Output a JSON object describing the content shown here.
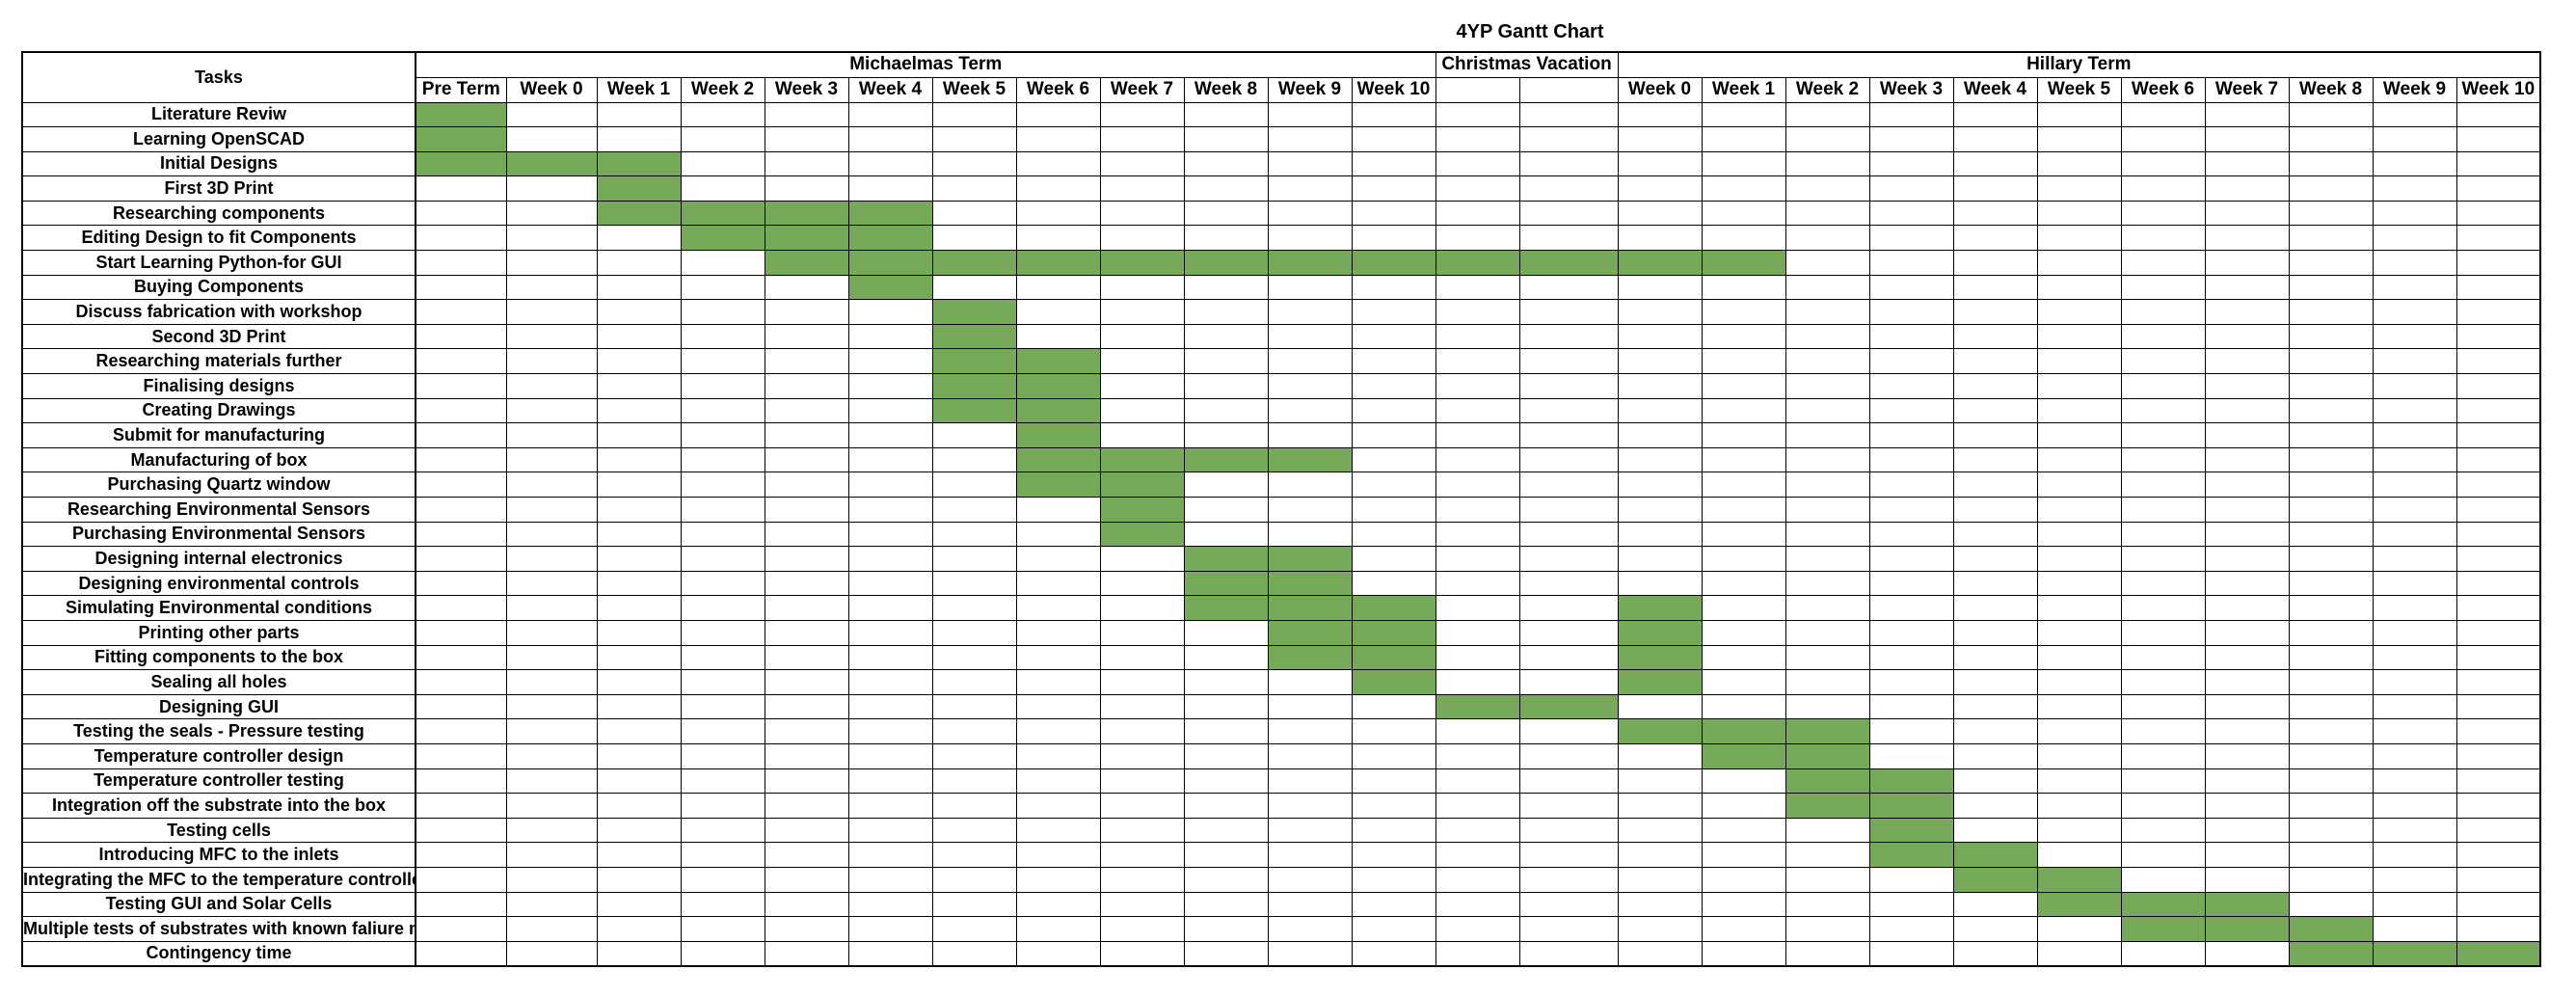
{
  "title": "4YP Gantt Chart",
  "header": {
    "tasks_label": "Tasks",
    "groups": [
      {
        "label": "",
        "span": 0
      },
      {
        "label": "Michaelmas Term",
        "span": 12
      },
      {
        "label": "Christmas Vacation",
        "span": 2
      },
      {
        "label": "Hillary Term",
        "span": 11
      }
    ]
  },
  "colors": {
    "filled": "#77a95a",
    "grid": "#000000",
    "background": "#ffffff"
  },
  "chart_data": {
    "type": "table",
    "title": "4YP Gantt Chart",
    "periods": [
      "Pre Term",
      "Week  0",
      "Week 1",
      "Week 2",
      "Week 3",
      "Week 4",
      "Week 5",
      "Week 6",
      "Week 7",
      "Week 8",
      "Week 9",
      "Week 10",
      "",
      "",
      "Week 0",
      "Week 1",
      "Week 2",
      "Week 3",
      "Week 4",
      "Week 5",
      "Week 6",
      "Week 7",
      "Week 8",
      "Week 9",
      "Week 10"
    ],
    "tasks": [
      {
        "name": "Literature Reviw",
        "cells": [
          0
        ]
      },
      {
        "name": "Learning OpenSCAD",
        "cells": [
          0
        ]
      },
      {
        "name": "Initial Designs",
        "cells": [
          0,
          1,
          2
        ]
      },
      {
        "name": "First 3D Print",
        "cells": [
          2
        ]
      },
      {
        "name": "Researching components",
        "cells": [
          2,
          3,
          4,
          5
        ]
      },
      {
        "name": "Editing Design to fit Components",
        "cells": [
          3,
          4,
          5
        ]
      },
      {
        "name": "Start Learning Python-for GUI",
        "cells": [
          4,
          5,
          6,
          7,
          8,
          9,
          10,
          11,
          12,
          13,
          14,
          15
        ]
      },
      {
        "name": "Buying Components",
        "cells": [
          5
        ]
      },
      {
        "name": "Discuss fabrication with workshop",
        "cells": [
          6
        ]
      },
      {
        "name": "Second 3D Print",
        "cells": [
          6
        ]
      },
      {
        "name": "Researching materials further",
        "cells": [
          6,
          7
        ]
      },
      {
        "name": "Finalising designs",
        "cells": [
          6,
          7
        ]
      },
      {
        "name": "Creating Drawings",
        "cells": [
          6,
          7
        ]
      },
      {
        "name": "Submit for manufacturing",
        "cells": [
          7
        ]
      },
      {
        "name": "Manufacturing of box",
        "cells": [
          7,
          8,
          9,
          10
        ]
      },
      {
        "name": "Purchasing Quartz window",
        "cells": [
          7,
          8
        ]
      },
      {
        "name": "Researching Environmental Sensors",
        "cells": [
          8
        ]
      },
      {
        "name": "Purchasing Environmental Sensors",
        "cells": [
          8
        ]
      },
      {
        "name": "Designing internal electronics",
        "cells": [
          9,
          10
        ]
      },
      {
        "name": "Designing environmental controls",
        "cells": [
          9,
          10
        ]
      },
      {
        "name": "Simulating Environmental conditions",
        "cells": [
          9,
          10,
          11,
          14
        ]
      },
      {
        "name": "Printing other parts",
        "cells": [
          10,
          11,
          14
        ]
      },
      {
        "name": "Fitting components to the box",
        "cells": [
          10,
          11,
          14
        ]
      },
      {
        "name": "Sealing all holes",
        "cells": [
          11,
          14
        ]
      },
      {
        "name": "Designing GUI",
        "cells": [
          12,
          13
        ]
      },
      {
        "name": "Testing the seals - Pressure testing",
        "cells": [
          14,
          15,
          16
        ]
      },
      {
        "name": "Temperature controller design",
        "cells": [
          15,
          16
        ]
      },
      {
        "name": "Temperature controller testing",
        "cells": [
          16,
          17
        ]
      },
      {
        "name": "Integration off the substrate into the box",
        "cells": [
          16,
          17
        ]
      },
      {
        "name": "Testing cells",
        "cells": [
          17
        ]
      },
      {
        "name": "Introducing MFC to the inlets",
        "cells": [
          17,
          18
        ]
      },
      {
        "name": "Integrating the MFC to the temperature controller",
        "cells": [
          18,
          19
        ]
      },
      {
        "name": "Testing GUI and Solar Cells",
        "cells": [
          19,
          20,
          21
        ]
      },
      {
        "name": "Multiple tests of substrates with known faliure mechanisms",
        "cells": [
          20,
          21,
          22
        ]
      },
      {
        "name": "Contingency time",
        "cells": [
          22,
          23,
          24
        ]
      }
    ]
  }
}
